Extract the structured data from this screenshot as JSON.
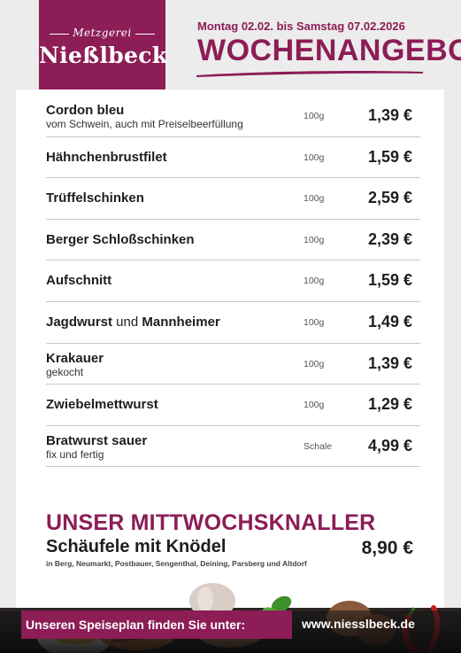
{
  "logo": {
    "subtitle": "Metzgerei",
    "name": "Nießlbeck"
  },
  "header": {
    "date_range": "Montag 02.02. bis Samstag 07.02.2026",
    "title": "WOCHENANGEBOT"
  },
  "items": [
    {
      "name": "Cordon bleu",
      "description": "vom Schwein, auch mit Preiselbeerfüllung",
      "unit": "100g",
      "price": "1,39 €"
    },
    {
      "name": "Hähnchenbrustfilet",
      "unit": "100g",
      "price": "1,59 €"
    },
    {
      "name": "Trüffelschinken",
      "unit": "100g",
      "price": "2,59 €"
    },
    {
      "name": "Berger Schloßschinken",
      "unit": "100g",
      "price": "2,39 €"
    },
    {
      "name": "Aufschnitt",
      "unit": "100g",
      "price": "1,59 €"
    },
    {
      "name": "Jagdwurst",
      "conjunction": " und ",
      "name2": "Mannheimer",
      "unit": "100g",
      "price": "1,49 €"
    },
    {
      "name": "Krakauer",
      "description": "gekocht",
      "unit": "100g",
      "price": "1,39 €"
    },
    {
      "name": "Zwiebelmettwurst",
      "unit": "100g",
      "price": "1,29 €"
    },
    {
      "name": "Bratwurst sauer",
      "description": "fix und fertig",
      "unit": "Schale",
      "price": "4,99 €"
    }
  ],
  "knaller": {
    "title": "UNSER MITTWOCHSKNALLER",
    "dish": "Schäufele mit Knödel",
    "price": "8,90 €",
    "locations": "in Berg, Neumarkt, Postbauer, Sengenthal, Deining, Parsberg und Altdorf"
  },
  "footer": {
    "label": "Unseren Speiseplan finden Sie unter:",
    "url": "www.niesslbeck.de"
  },
  "colors": {
    "brand": "#8c1d56",
    "text": "#1e1e1e",
    "divider": "#c9c9c9"
  }
}
